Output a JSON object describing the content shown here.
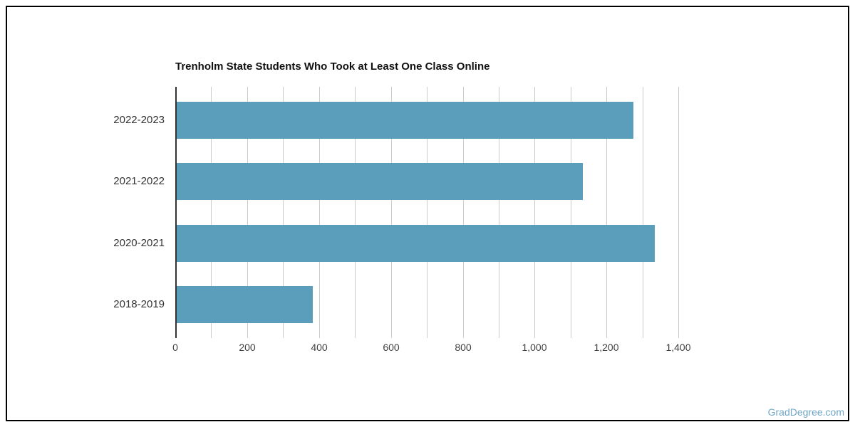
{
  "chart_data": {
    "type": "bar",
    "orientation": "horizontal",
    "title": "Trenholm State Students Who Took at Least One Class Online",
    "categories": [
      "2022-2023",
      "2021-2022",
      "2020-2021",
      "2018-2019"
    ],
    "values": [
      1270,
      1130,
      1330,
      378
    ],
    "xlabel": "",
    "ylabel": "",
    "xlim": [
      0,
      1475
    ],
    "gridline_interval": 100,
    "tick_label_interval": 200,
    "x_tick_labels": [
      "0",
      "200",
      "400",
      "600",
      "800",
      "1,000",
      "1,200",
      "1,400"
    ],
    "grid": true,
    "legend_position": "none",
    "colors": {
      "bar": "#5A9EBC",
      "gridline": "#CCCCCC",
      "baseline": "#333333",
      "title": "#111111",
      "category_label": "#333333",
      "tick_label": "#404040"
    }
  },
  "watermark": {
    "text": "GradDegree.com",
    "color": "#6FA6C4"
  }
}
